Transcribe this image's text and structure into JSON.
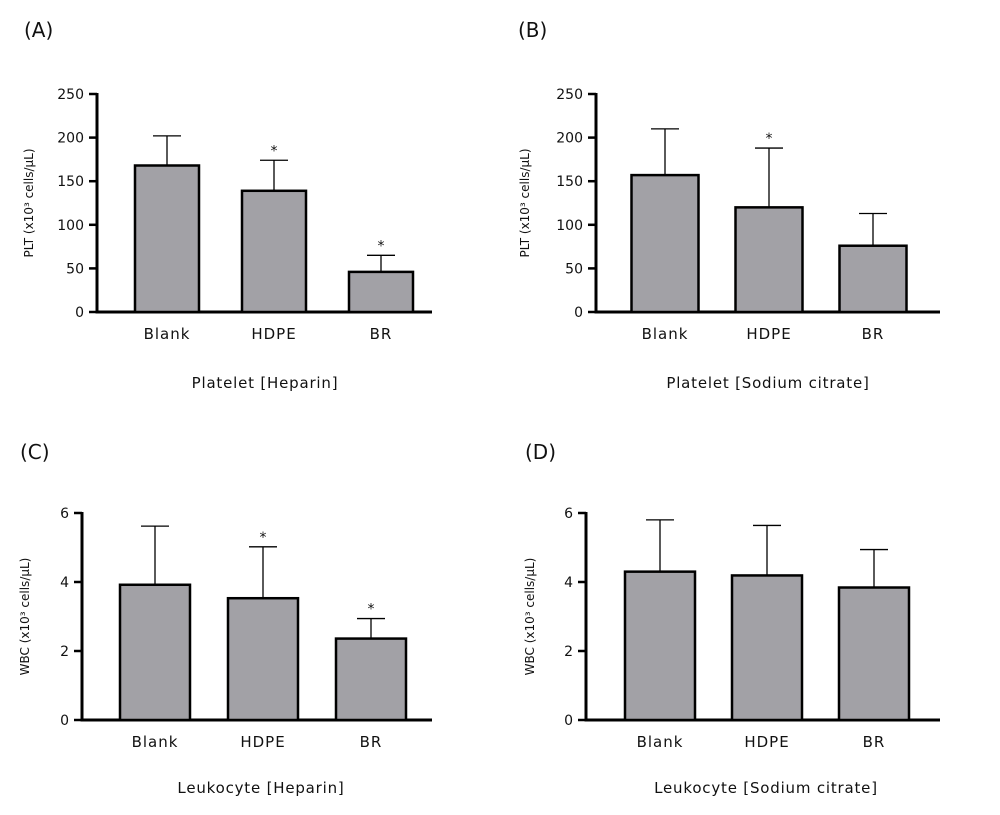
{
  "chart_data": [
    {
      "panel": "(A)",
      "type": "bar",
      "xlabel": "Platelet [Heparin]",
      "ylabel": "PLT (x10³ cells/μL)",
      "categories": [
        "Blank",
        "HDPE",
        "BR"
      ],
      "values": [
        168,
        139,
        46
      ],
      "error_upper": [
        202,
        174,
        65
      ],
      "significance": [
        "",
        "*",
        "*"
      ],
      "ylim": [
        0,
        250
      ],
      "yticks": [
        0,
        50,
        100,
        150,
        200,
        250
      ],
      "bar_color": "#a2a1a6",
      "grid": false
    },
    {
      "panel": "(B)",
      "type": "bar",
      "xlabel": "Platelet [Sodium citrate]",
      "ylabel": "PLT (x10³ cells/μL)",
      "categories": [
        "Blank",
        "HDPE",
        "BR"
      ],
      "values": [
        157,
        120,
        76
      ],
      "error_upper": [
        210,
        188,
        113
      ],
      "significance": [
        "",
        "*",
        ""
      ],
      "ylim": [
        0,
        250
      ],
      "yticks": [
        0,
        50,
        100,
        150,
        200,
        250
      ],
      "bar_color": "#a2a1a6",
      "grid": false
    },
    {
      "panel": "(C)",
      "type": "bar",
      "xlabel": "Leukocyte [Heparin]",
      "ylabel": "WBC (x10³ cells/μL)",
      "categories": [
        "Blank",
        "HDPE",
        "BR"
      ],
      "values": [
        3.92,
        3.53,
        2.36
      ],
      "error_upper": [
        5.62,
        5.02,
        2.94
      ],
      "significance": [
        "",
        "*",
        "*"
      ],
      "ylim": [
        0,
        6
      ],
      "yticks": [
        0,
        2,
        4,
        6
      ],
      "bar_color": "#a2a1a6",
      "grid": false
    },
    {
      "panel": "(D)",
      "type": "bar",
      "xlabel": "Leukocyte [Sodium citrate]",
      "ylabel": "WBC (x10³ cells/μL)",
      "categories": [
        "Blank",
        "HDPE",
        "BR"
      ],
      "values": [
        4.3,
        4.19,
        3.84
      ],
      "error_upper": [
        5.8,
        5.64,
        4.94
      ],
      "significance": [
        "",
        "",
        ""
      ],
      "ylim": [
        0,
        6
      ],
      "yticks": [
        0,
        2,
        4,
        6
      ],
      "bar_color": "#a2a1a6",
      "grid": false
    }
  ]
}
